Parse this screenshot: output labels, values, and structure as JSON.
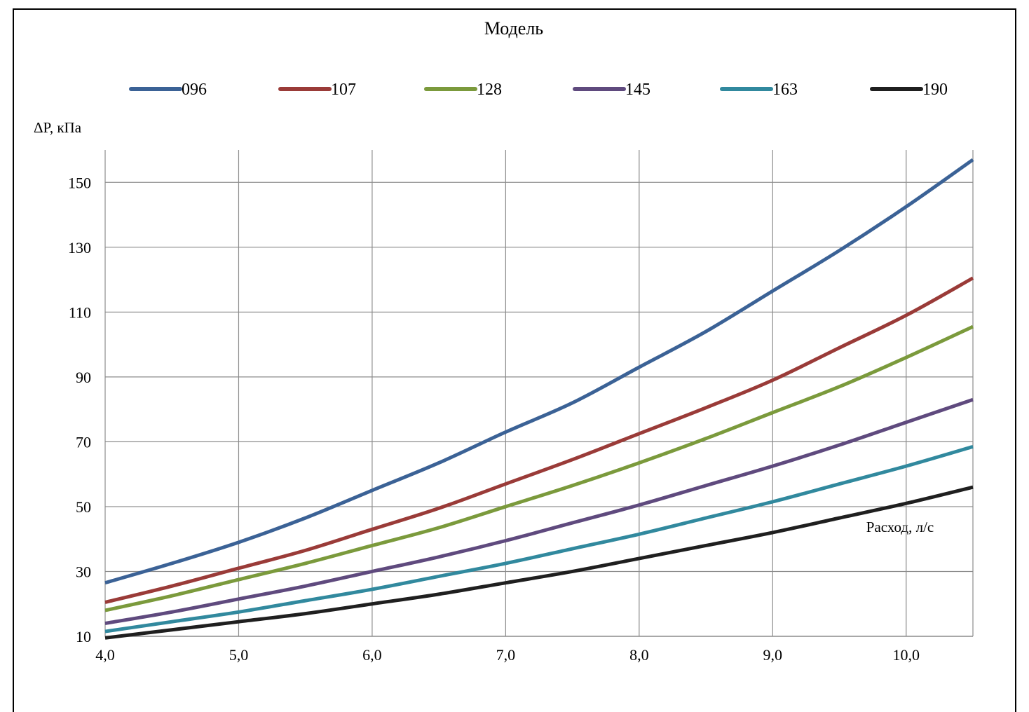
{
  "chart_data": {
    "type": "line",
    "title": "Модель",
    "ylabel": "ΔP, кПа",
    "xlabel": "Расход, л/с",
    "xlim": [
      4.0,
      10.5
    ],
    "ylim": [
      10,
      160
    ],
    "x_ticks": [
      4.0,
      5.0,
      6.0,
      7.0,
      8.0,
      9.0,
      10.0
    ],
    "x_tick_labels": [
      "4,0",
      "5,0",
      "6,0",
      "7,0",
      "8,0",
      "9,0",
      "10,0"
    ],
    "y_ticks": [
      10,
      30,
      50,
      70,
      90,
      110,
      130,
      150
    ],
    "y_tick_labels": [
      "10",
      "30",
      "50",
      "70",
      "90",
      "110",
      "130",
      "150"
    ],
    "grid": true,
    "legend_position": "top",
    "x": [
      4.0,
      4.5,
      5.0,
      5.5,
      6.0,
      6.5,
      7.0,
      7.5,
      8.0,
      8.5,
      9.0,
      9.5,
      10.0,
      10.5
    ],
    "series": [
      {
        "name": "096",
        "color": "#3b6296",
        "values": [
          26.5,
          32.5,
          39.0,
          46.5,
          55.0,
          63.5,
          73.0,
          82.0,
          93.0,
          104.0,
          116.5,
          129.0,
          142.5,
          157.0
        ]
      },
      {
        "name": "107",
        "color": "#9a3b38",
        "values": [
          20.5,
          25.5,
          31.0,
          36.5,
          43.0,
          49.5,
          57.0,
          64.5,
          72.5,
          80.5,
          89.0,
          99.0,
          109.0,
          120.5
        ]
      },
      {
        "name": "128",
        "color": "#7b9a3c",
        "values": [
          18.0,
          22.5,
          27.5,
          32.5,
          38.0,
          43.5,
          50.0,
          56.5,
          63.5,
          71.0,
          79.0,
          87.0,
          96.0,
          105.5
        ]
      },
      {
        "name": "145",
        "color": "#5f4a7e",
        "values": [
          14.0,
          17.5,
          21.5,
          25.5,
          30.0,
          34.5,
          39.5,
          45.0,
          50.5,
          56.5,
          62.5,
          69.0,
          76.0,
          83.0
        ]
      },
      {
        "name": "163",
        "color": "#31899e",
        "values": [
          11.5,
          14.5,
          17.5,
          21.0,
          24.5,
          28.5,
          32.5,
          37.0,
          41.5,
          46.5,
          51.5,
          57.0,
          62.5,
          68.5
        ]
      },
      {
        "name": "190",
        "color": "#1f1f1f",
        "values": [
          9.5,
          12.0,
          14.5,
          17.0,
          20.0,
          23.0,
          26.5,
          30.0,
          34.0,
          38.0,
          42.0,
          46.5,
          51.0,
          56.0
        ]
      }
    ]
  }
}
